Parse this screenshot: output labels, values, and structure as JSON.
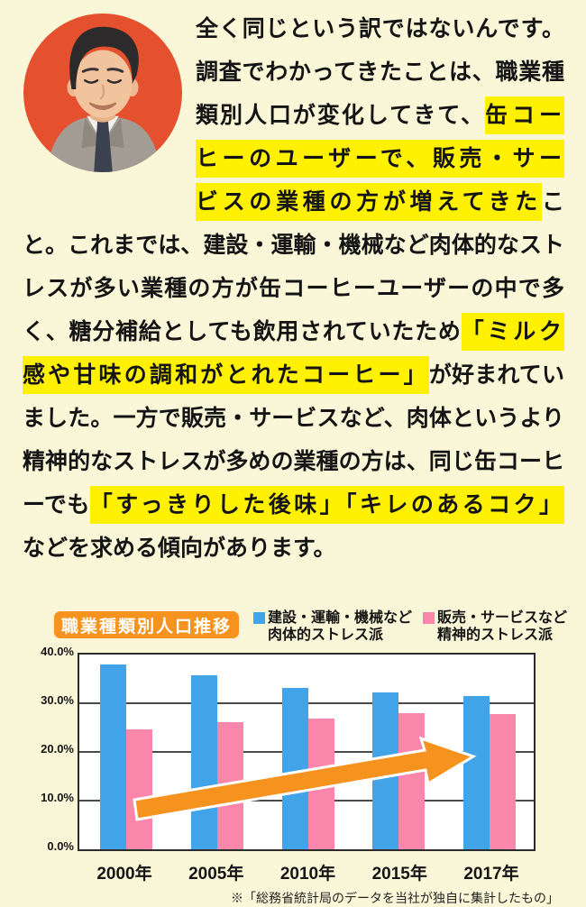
{
  "colors": {
    "background": "#FAF7D8",
    "highlight": "#FFF100",
    "text": "#141414",
    "accent_orange": "#F6921E",
    "avatar_bg": "#E5502E",
    "bar_blue": "#41A3E8",
    "bar_pink": "#FA86AC",
    "plot_border": "#2B2B2B"
  },
  "avatar": {
    "description": "smiling man in grey suit on orange circle"
  },
  "paragraph": {
    "runs": [
      {
        "text": "全く同じという訳ではないんです。調査でわかってきたことは、職業種類別人口が変化してきて、",
        "highlight": false
      },
      {
        "text": "缶コーヒーのユーザーで、販売・サービスの業種の方が増えてきた",
        "highlight": true
      },
      {
        "text": "こと。これまでは、建設・運輸・機械など肉体的なストレスが多い業種の方が缶コーヒーユーザーの中で多く、糖分補給としても飲用されていたため",
        "highlight": false
      },
      {
        "text": "「ミルク感や甘味の調和がとれたコーヒー」",
        "highlight": true
      },
      {
        "text": "が好まれていました。一方で販売・サービスなど、肉体というより精神的なストレスが多めの業種の方は、同じ缶コーヒーでも",
        "highlight": false
      },
      {
        "text": "「すっきりした後味」",
        "highlight": true
      },
      {
        "text": "「キレのあるコク」",
        "highlight": true
      },
      {
        "text": "などを求める傾向があります。",
        "highlight": false
      }
    ]
  },
  "chart": {
    "title": "職業種類別人口推移",
    "legend": [
      {
        "line1": "建設・運輸・機械など",
        "line2": "肉体的ストレス派"
      },
      {
        "line1": "販売・サービスなど",
        "line2": "精神的ストレス派"
      }
    ],
    "footnote": "※「総務省統計局のデータを当社が独自に集計したもの」"
  },
  "chart_data": {
    "type": "bar",
    "title": "職業種類別人口推移",
    "categories": [
      "2000年",
      "2005年",
      "2010年",
      "2015年",
      "2017年"
    ],
    "series": [
      {
        "name": "建設・運輸・機械など肉体的ストレス派",
        "color": "#41A3E8",
        "values": [
          38.0,
          35.7,
          33.1,
          32.3,
          31.4
        ]
      },
      {
        "name": "販売・サービスなど精神的ストレス派",
        "color": "#FA86AC",
        "values": [
          24.7,
          26.2,
          26.9,
          28.0,
          27.7
        ]
      }
    ],
    "ylabel": "",
    "xlabel": "",
    "ylim": [
      0,
      40
    ],
    "yticks": [
      "40.0%",
      "30.0%",
      "20.0%",
      "10.0%",
      "0.0%"
    ],
    "grid": true,
    "legend_position": "top-right",
    "annotation": "orange upward trend arrow across bars",
    "footnote": "※「総務省統計局のデータを当社が独自に集計したもの」"
  }
}
